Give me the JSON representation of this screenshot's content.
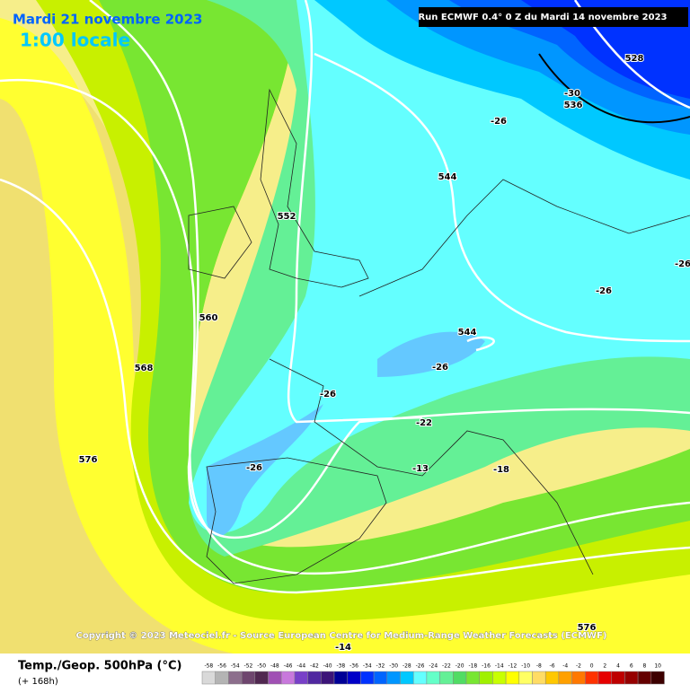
{
  "header": {
    "date": "Mardi 21 novembre 2023",
    "time": "1:00 locale",
    "run": "Run ECMWF 0.4° 0 Z du Mardi 14 novembre 2023"
  },
  "copyright": "Copyright © 2023 Meteociel.fr - Source European Centre for Medium-Range Weather Forecasts (ECMWF)",
  "footer": {
    "parameter": "Temp./Geop. 500hPa (°C)",
    "lead": "(+ 168h)"
  },
  "contour_labels": [
    528,
    -30,
    536,
    -26,
    544,
    552,
    560,
    568,
    576,
    -26,
    -26,
    544,
    -26,
    -26,
    -22,
    -13,
    -18,
    -26,
    576,
    -14
  ],
  "legend": {
    "labels": [
      -58,
      -56,
      -54,
      -52,
      -50,
      -48,
      -46,
      -44,
      -42,
      -40,
      -38,
      -36,
      -34,
      -32,
      -30,
      -28,
      -26,
      -24,
      -22,
      -20,
      -18,
      -16,
      -14,
      -12,
      -10,
      -8,
      -6,
      -4,
      -2,
      0,
      2,
      4,
      6,
      8,
      10
    ],
    "colors": [
      "#d9d9d9",
      "#b4b4b4",
      "#8c6e8c",
      "#6e466e",
      "#502850",
      "#a050b4",
      "#c878dc",
      "#7840c8",
      "#5028a0",
      "#3c1478",
      "#000096",
      "#0000c8",
      "#0032ff",
      "#0064ff",
      "#0096ff",
      "#00c8ff",
      "#64ffff",
      "#64ffc8",
      "#64f096",
      "#50dc64",
      "#78e632",
      "#a0f000",
      "#c8ff00",
      "#ffff00",
      "#ffff64",
      "#ffdc64",
      "#ffc800",
      "#ffa000",
      "#ff7800",
      "#ff3200",
      "#e60000",
      "#be0000",
      "#960000",
      "#640000",
      "#3c0000"
    ]
  }
}
